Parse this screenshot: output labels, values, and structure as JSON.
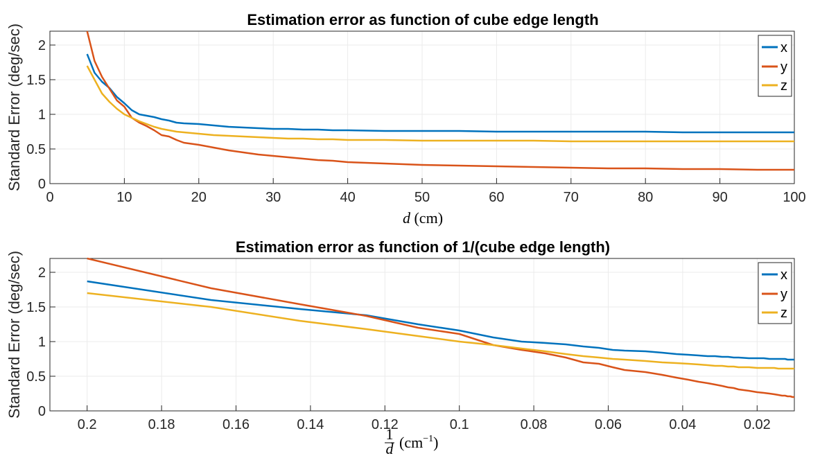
{
  "chart_data": [
    {
      "type": "line",
      "title": "Estimation error as function of cube edge length",
      "xlabel": "d (cm)",
      "ylabel": "Standard Error (deg/sec)",
      "xlim": [
        0,
        100
      ],
      "ylim": [
        0,
        2.2
      ],
      "xticks": [
        0,
        10,
        20,
        30,
        40,
        50,
        60,
        70,
        80,
        90,
        100
      ],
      "xtick_labels": [
        "0",
        "10",
        "20",
        "30",
        "40",
        "50",
        "60",
        "70",
        "80",
        "90",
        "100"
      ],
      "yticks": [
        0,
        0.5,
        1,
        1.5,
        2
      ],
      "ytick_labels": [
        "0",
        "0.5",
        "1",
        "1.5",
        "2"
      ],
      "grid": true,
      "legend": "top-right",
      "x": [
        5,
        6,
        7,
        8,
        9,
        10,
        11,
        12,
        13,
        14,
        15,
        16,
        17,
        18,
        20,
        22,
        24,
        26,
        28,
        30,
        32,
        34,
        36,
        38,
        40,
        45,
        50,
        55,
        60,
        65,
        70,
        75,
        80,
        85,
        90,
        95,
        100
      ],
      "series": [
        {
          "name": "x",
          "color": "#0072BD",
          "values": [
            1.87,
            1.6,
            1.47,
            1.38,
            1.25,
            1.16,
            1.06,
            1.0,
            0.98,
            0.96,
            0.93,
            0.91,
            0.88,
            0.87,
            0.86,
            0.84,
            0.82,
            0.81,
            0.8,
            0.79,
            0.79,
            0.78,
            0.78,
            0.77,
            0.77,
            0.76,
            0.76,
            0.76,
            0.75,
            0.75,
            0.75,
            0.75,
            0.75,
            0.74,
            0.74,
            0.74,
            0.74
          ]
        },
        {
          "name": "y",
          "color": "#D95319",
          "values": [
            2.2,
            1.77,
            1.54,
            1.37,
            1.2,
            1.11,
            0.95,
            0.88,
            0.83,
            0.77,
            0.7,
            0.68,
            0.63,
            0.59,
            0.56,
            0.52,
            0.48,
            0.45,
            0.42,
            0.4,
            0.38,
            0.36,
            0.34,
            0.33,
            0.31,
            0.29,
            0.27,
            0.26,
            0.25,
            0.24,
            0.23,
            0.22,
            0.22,
            0.21,
            0.21,
            0.2,
            0.2
          ]
        },
        {
          "name": "z",
          "color": "#EDB120",
          "values": [
            1.7,
            1.5,
            1.3,
            1.18,
            1.08,
            1.0,
            0.95,
            0.9,
            0.86,
            0.82,
            0.79,
            0.77,
            0.75,
            0.74,
            0.72,
            0.7,
            0.69,
            0.68,
            0.67,
            0.66,
            0.65,
            0.65,
            0.64,
            0.64,
            0.63,
            0.63,
            0.62,
            0.62,
            0.62,
            0.62,
            0.61,
            0.61,
            0.61,
            0.61,
            0.61,
            0.61,
            0.61
          ]
        }
      ]
    },
    {
      "type": "line",
      "title": "Estimation error as function of 1/(cube edge length)",
      "xlabel": "1/d (cm^-1)",
      "ylabel": "Standard Error (deg/sec)",
      "xlim": [
        0.01,
        0.21
      ],
      "x_reversed": true,
      "ylim": [
        0,
        2.2
      ],
      "xticks": [
        0.2,
        0.18,
        0.16,
        0.14,
        0.12,
        0.1,
        0.08,
        0.06,
        0.04,
        0.02
      ],
      "xtick_labels": [
        "0.2",
        "0.18",
        "0.16",
        "0.14",
        "0.12",
        "0.1",
        "0.08",
        "0.06",
        "0.04",
        "0.02"
      ],
      "yticks": [
        0,
        0.5,
        1,
        1.5,
        2
      ],
      "ytick_labels": [
        "0",
        "0.5",
        "1",
        "1.5",
        "2"
      ],
      "grid": true,
      "legend": "top-right",
      "x": [
        0.2,
        0.1667,
        0.1429,
        0.125,
        0.1111,
        0.1,
        0.0909,
        0.0833,
        0.0769,
        0.0714,
        0.0667,
        0.0625,
        0.0588,
        0.0556,
        0.05,
        0.0455,
        0.0417,
        0.0385,
        0.0357,
        0.0333,
        0.0313,
        0.0294,
        0.0278,
        0.0263,
        0.025,
        0.0222,
        0.02,
        0.0182,
        0.0167,
        0.0154,
        0.0143,
        0.0133,
        0.0125,
        0.0118,
        0.0111,
        0.0105,
        0.01
      ],
      "series": [
        {
          "name": "x",
          "color": "#0072BD",
          "values": [
            1.87,
            1.6,
            1.47,
            1.38,
            1.25,
            1.16,
            1.06,
            1.0,
            0.98,
            0.96,
            0.93,
            0.91,
            0.88,
            0.87,
            0.86,
            0.84,
            0.82,
            0.81,
            0.8,
            0.79,
            0.79,
            0.78,
            0.78,
            0.77,
            0.77,
            0.76,
            0.76,
            0.76,
            0.75,
            0.75,
            0.75,
            0.75,
            0.75,
            0.74,
            0.74,
            0.74,
            0.74
          ]
        },
        {
          "name": "y",
          "color": "#D95319",
          "values": [
            2.2,
            1.77,
            1.54,
            1.37,
            1.2,
            1.11,
            0.95,
            0.88,
            0.83,
            0.77,
            0.7,
            0.68,
            0.63,
            0.59,
            0.56,
            0.52,
            0.48,
            0.45,
            0.42,
            0.4,
            0.38,
            0.36,
            0.34,
            0.33,
            0.31,
            0.29,
            0.27,
            0.26,
            0.25,
            0.24,
            0.23,
            0.22,
            0.22,
            0.21,
            0.21,
            0.2,
            0.2
          ]
        },
        {
          "name": "z",
          "color": "#EDB120",
          "values": [
            1.7,
            1.5,
            1.3,
            1.18,
            1.08,
            1.0,
            0.95,
            0.9,
            0.86,
            0.82,
            0.79,
            0.77,
            0.75,
            0.74,
            0.72,
            0.7,
            0.69,
            0.68,
            0.67,
            0.66,
            0.65,
            0.65,
            0.64,
            0.64,
            0.63,
            0.63,
            0.62,
            0.62,
            0.62,
            0.62,
            0.61,
            0.61,
            0.61,
            0.61,
            0.61,
            0.61,
            0.61
          ]
        }
      ]
    }
  ]
}
